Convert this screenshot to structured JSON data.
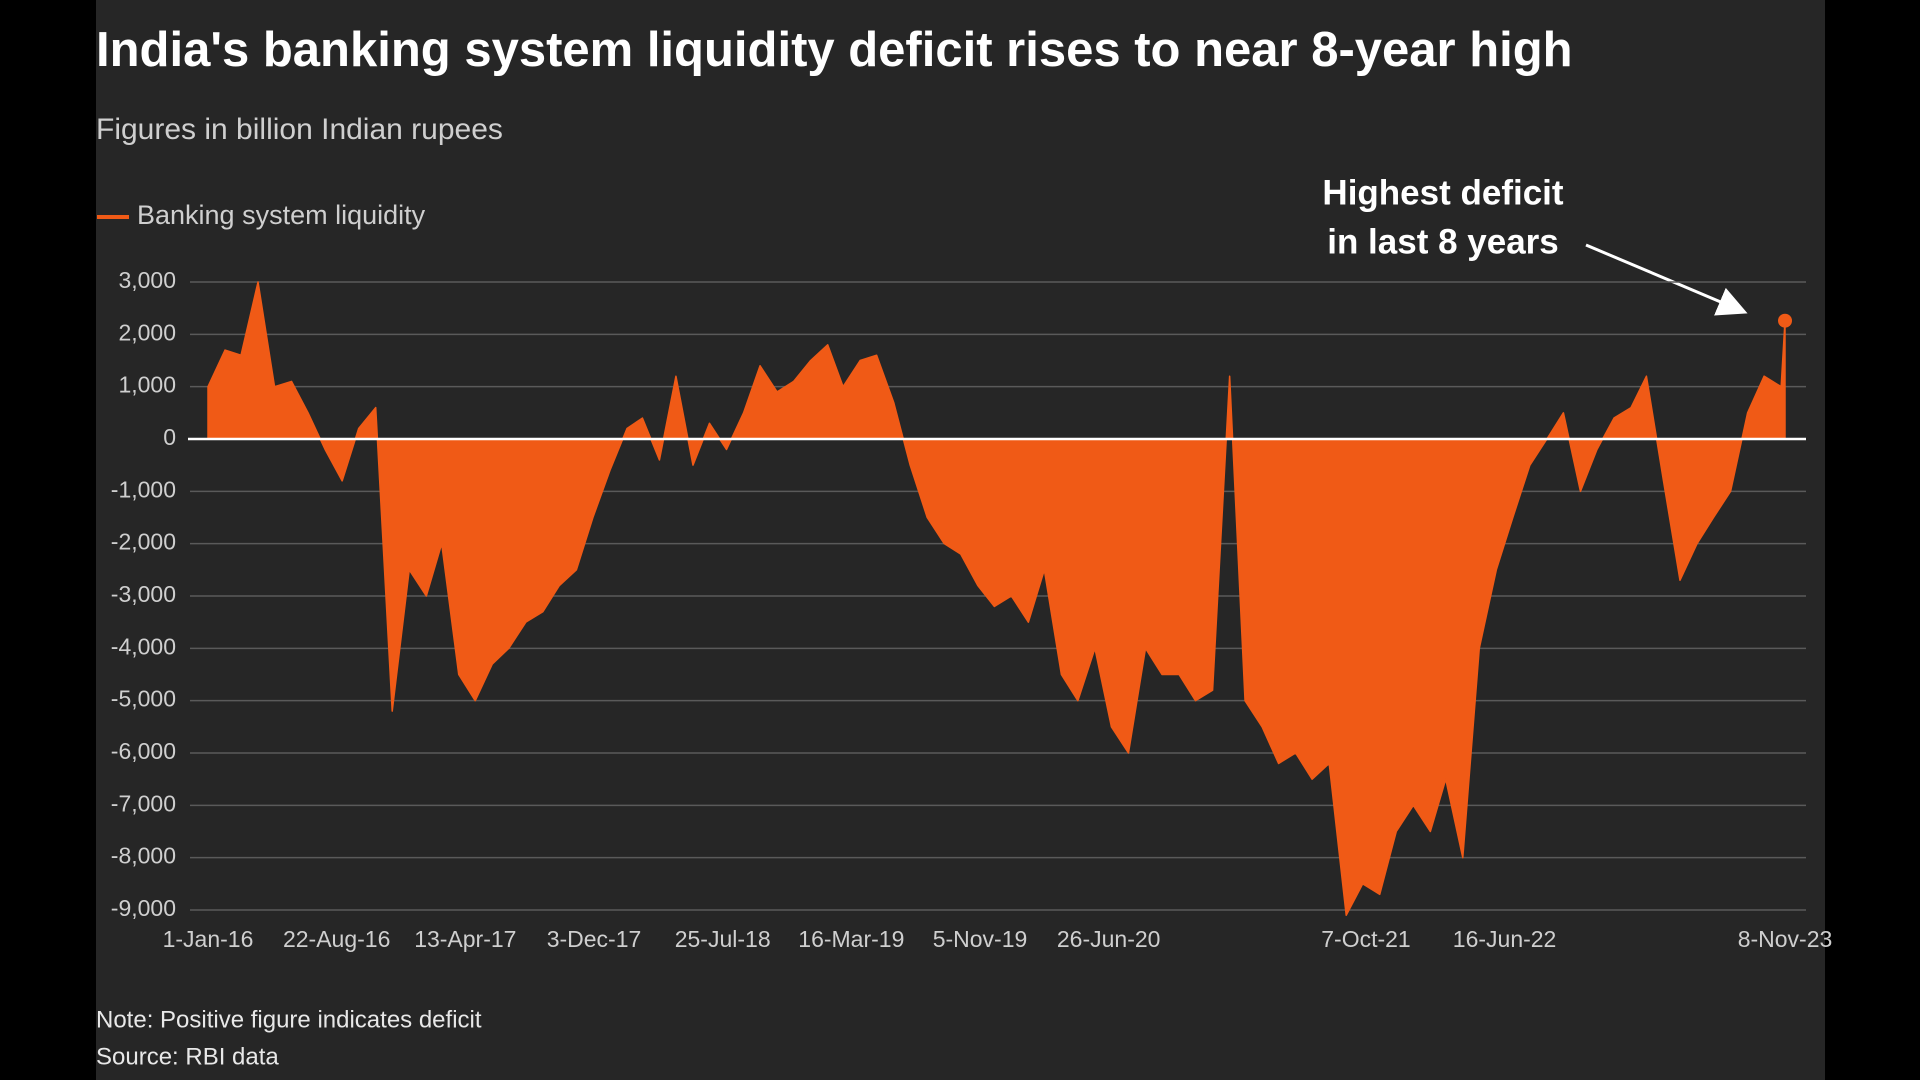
{
  "chart_data": {
    "type": "area",
    "title": "India's banking system liquidity deficit rises to near 8-year high",
    "subtitle": "Figures in billion Indian rupees",
    "annotation": [
      "Highest deficit",
      "in last 8 years"
    ],
    "note": "Note: Positive figure indicates deficit",
    "source": "Source: RBI data",
    "x": [
      "2016-01-01",
      "2016-02-01",
      "2016-03-01",
      "2016-04-01",
      "2016-05-01",
      "2016-06-01",
      "2016-07-01",
      "2016-08-01",
      "2016-09-01",
      "2016-10-01",
      "2016-11-01",
      "2016-12-01",
      "2017-01-01",
      "2017-02-01",
      "2017-03-01",
      "2017-04-01",
      "2017-05-01",
      "2017-06-01",
      "2017-07-01",
      "2017-08-01",
      "2017-09-01",
      "2017-10-01",
      "2017-11-01",
      "2017-12-01",
      "2018-01-01",
      "2018-02-01",
      "2018-03-01",
      "2018-04-01",
      "2018-05-01",
      "2018-06-01",
      "2018-07-01",
      "2018-08-01",
      "2018-09-01",
      "2018-10-01",
      "2018-11-01",
      "2018-12-01",
      "2019-01-01",
      "2019-02-01",
      "2019-03-01",
      "2019-04-01",
      "2019-05-01",
      "2019-06-01",
      "2019-07-01",
      "2019-08-01",
      "2019-09-01",
      "2019-10-01",
      "2019-11-01",
      "2019-12-01",
      "2020-01-01",
      "2020-02-01",
      "2020-03-01",
      "2020-04-01",
      "2020-05-01",
      "2020-06-01",
      "2020-07-01",
      "2020-08-01",
      "2020-09-01",
      "2020-10-01",
      "2020-11-01",
      "2020-12-01",
      "2021-01-01",
      "2021-02-01",
      "2021-03-01",
      "2021-04-01",
      "2021-05-01",
      "2021-06-01",
      "2021-07-01",
      "2021-08-01",
      "2021-09-01",
      "2021-10-01",
      "2021-11-01",
      "2021-12-01",
      "2022-01-01",
      "2022-02-01",
      "2022-03-01",
      "2022-04-01",
      "2022-05-01",
      "2022-06-01",
      "2022-07-01",
      "2022-08-01",
      "2022-09-01",
      "2022-10-01",
      "2022-11-01",
      "2022-12-01",
      "2023-01-01",
      "2023-02-01",
      "2023-03-01",
      "2023-04-01",
      "2023-05-01",
      "2023-06-01",
      "2023-07-01",
      "2023-08-01",
      "2023-09-01",
      "2023-10-01",
      "2023-11-01",
      "2023-11-08"
    ],
    "series": [
      {
        "name": "Banking system liquidity",
        "color": "#f05a16",
        "values": [
          1000,
          1700,
          1600,
          3000,
          1000,
          1100,
          500,
          -200,
          -800,
          200,
          600,
          -5200,
          -2500,
          -3000,
          -2000,
          -4500,
          -5000,
          -4300,
          -4000,
          -3500,
          -3300,
          -2800,
          -2500,
          -1500,
          -600,
          200,
          400,
          -400,
          1200,
          -500,
          300,
          -200,
          500,
          1400,
          900,
          1100,
          1500,
          1800,
          1000,
          1500,
          1600,
          700,
          -500,
          -1500,
          -2000,
          -2200,
          -2800,
          -3200,
          -3000,
          -3500,
          -2500,
          -4500,
          -5000,
          -4000,
          -5500,
          -6000,
          -4000,
          -4500,
          -4500,
          -5000,
          -4800,
          1200,
          -5000,
          -5500,
          -6200,
          -6000,
          -6500,
          -6200,
          -9100,
          -8500,
          -8700,
          -7500,
          -7000,
          -7500,
          -6500,
          -8000,
          -4000,
          -2500,
          -1500,
          -500,
          0,
          500,
          -1000,
          -200,
          400,
          600,
          1200,
          -800,
          -2700,
          -2000,
          -1500,
          -1000,
          500,
          1200,
          1000,
          2260
        ]
      }
    ],
    "xlim": [
      "2016-01-01",
      "2023-11-08"
    ],
    "xticks": [
      {
        "value": "2016-01-01",
        "label": "1-Jan-16"
      },
      {
        "value": "2016-08-22",
        "label": "22-Aug-16"
      },
      {
        "value": "2017-04-13",
        "label": "13-Apr-17"
      },
      {
        "value": "2017-12-03",
        "label": "3-Dec-17"
      },
      {
        "value": "2018-07-25",
        "label": "25-Jul-18"
      },
      {
        "value": "2019-03-16",
        "label": "16-Mar-19"
      },
      {
        "value": "2019-11-05",
        "label": "5-Nov-19"
      },
      {
        "value": "2020-06-26",
        "label": "26-Jun-20"
      },
      {
        "value": "2021-10-07",
        "label": "7-Oct-21"
      },
      {
        "value": "2022-06-16",
        "label": "16-Jun-22"
      },
      {
        "value": "2023-11-08",
        "label": "8-Nov-23"
      }
    ],
    "ylim": [
      -9000,
      3000
    ],
    "yticks": [
      {
        "value": 3000,
        "label": "3,000"
      },
      {
        "value": 2000,
        "label": "2,000"
      },
      {
        "value": 1000,
        "label": "1,000"
      },
      0,
      {
        "value": -1000,
        "label": "-1,000"
      },
      {
        "value": -2000,
        "label": "-2,000"
      },
      {
        "value": -3000,
        "label": "-3,000"
      },
      {
        "value": -4000,
        "label": "-4,000"
      },
      {
        "value": -5000,
        "label": "-5,000"
      },
      {
        "value": -6000,
        "label": "-6,000"
      },
      {
        "value": -7000,
        "label": "-7,000"
      },
      {
        "value": -8000,
        "label": "-8,000"
      },
      {
        "value": -9000,
        "label": "-9,000"
      }
    ],
    "grid": true
  }
}
